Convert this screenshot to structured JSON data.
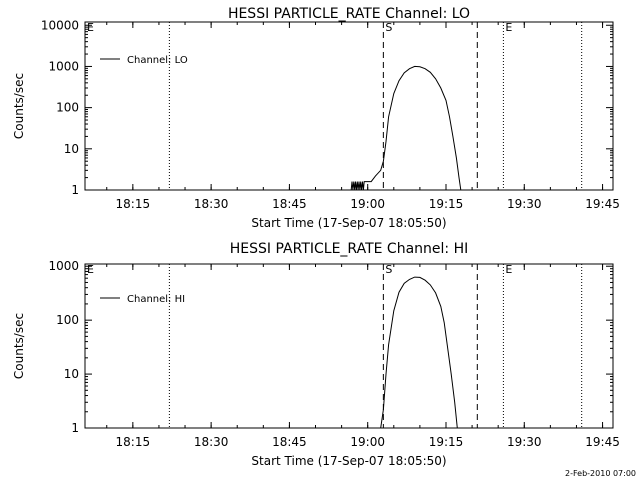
{
  "footer": {
    "timestamp": "2-Feb-2010 07:00"
  },
  "chart_data": [
    {
      "type": "line",
      "title": "HESSI PARTICLE_RATE Channel: LO",
      "xlabel": "Start Time (17-Sep-07 18:05:50)",
      "ylabel": "Counts/sec",
      "y_scale": "log",
      "xlim": [
        "18:05:50",
        "19:47:00"
      ],
      "ylim": [
        1,
        12000
      ],
      "x_ticks": [
        "18:15",
        "18:30",
        "18:45",
        "19:00",
        "19:15",
        "19:30",
        "19:45"
      ],
      "y_ticks": [
        "1",
        "10",
        "100",
        "1000",
        "10000"
      ],
      "legend": {
        "position": "top-left",
        "entries": [
          "Channel: LO"
        ]
      },
      "markers": [
        {
          "label": "E",
          "time": "18:05:50",
          "style": "dotted"
        },
        {
          "time": "18:22:00",
          "style": "dotted"
        },
        {
          "label": "S",
          "time": "19:03:00",
          "style": "dashed"
        },
        {
          "time": "19:21:00",
          "style": "dashed"
        },
        {
          "label": "E",
          "time": "19:26:00",
          "style": "dotted"
        },
        {
          "time": "19:41:00",
          "style": "dotted"
        }
      ],
      "series": [
        {
          "name": "Channel: LO",
          "points": [
            [
              "18:56:50",
              1
            ],
            [
              "18:57:00",
              1.6
            ],
            [
              "18:57:10",
              1
            ],
            [
              "18:57:20",
              1.6
            ],
            [
              "18:57:30",
              1
            ],
            [
              "18:57:40",
              1.6
            ],
            [
              "18:57:50",
              1
            ],
            [
              "18:58:00",
              1.6
            ],
            [
              "18:58:10",
              1
            ],
            [
              "18:58:20",
              1.6
            ],
            [
              "18:58:30",
              1
            ],
            [
              "18:58:40",
              1.6
            ],
            [
              "18:58:50",
              1
            ],
            [
              "18:59:00",
              1.6
            ],
            [
              "18:59:10",
              1
            ],
            [
              "18:59:20",
              1.6
            ],
            [
              "19:00:40",
              1.6
            ],
            [
              "19:01:30",
              2.2
            ],
            [
              "19:02:30",
              3
            ],
            [
              "19:03:00",
              5
            ],
            [
              "19:03:30",
              15
            ],
            [
              "19:04:00",
              60
            ],
            [
              "19:05:00",
              220
            ],
            [
              "19:06:00",
              450
            ],
            [
              "19:07:00",
              700
            ],
            [
              "19:08:00",
              880
            ],
            [
              "19:09:00",
              1000
            ],
            [
              "19:10:00",
              980
            ],
            [
              "19:11:00",
              880
            ],
            [
              "19:12:00",
              720
            ],
            [
              "19:13:00",
              500
            ],
            [
              "19:14:00",
              300
            ],
            [
              "19:15:00",
              150
            ],
            [
              "19:15:40",
              60
            ],
            [
              "19:16:20",
              20
            ],
            [
              "19:17:00",
              6
            ],
            [
              "19:17:30",
              2
            ],
            [
              "19:17:50",
              1
            ]
          ]
        }
      ]
    },
    {
      "type": "line",
      "title": "HESSI PARTICLE_RATE Channel: HI",
      "xlabel": "Start Time (17-Sep-07 18:05:50)",
      "ylabel": "Counts/sec",
      "y_scale": "log",
      "xlim": [
        "18:05:50",
        "19:47:00"
      ],
      "ylim": [
        1,
        1100
      ],
      "x_ticks": [
        "18:15",
        "18:30",
        "18:45",
        "19:00",
        "19:15",
        "19:30",
        "19:45"
      ],
      "y_ticks": [
        "1",
        "10",
        "100",
        "1000"
      ],
      "legend": {
        "position": "top-left",
        "entries": [
          "Channel: HI"
        ]
      },
      "markers": [
        {
          "label": "E",
          "time": "18:05:50",
          "style": "dotted"
        },
        {
          "time": "18:22:00",
          "style": "dotted"
        },
        {
          "label": "S",
          "time": "19:03:00",
          "style": "dashed"
        },
        {
          "time": "19:21:00",
          "style": "dashed"
        },
        {
          "label": "E",
          "time": "19:26:00",
          "style": "dotted"
        },
        {
          "time": "19:41:00",
          "style": "dotted"
        }
      ],
      "series": [
        {
          "name": "Channel: HI",
          "points": [
            [
              "19:02:30",
              1
            ],
            [
              "19:03:00",
              2.2
            ],
            [
              "19:03:30",
              10
            ],
            [
              "19:04:00",
              35
            ],
            [
              "19:05:00",
              150
            ],
            [
              "19:06:00",
              330
            ],
            [
              "19:07:00",
              480
            ],
            [
              "19:08:00",
              570
            ],
            [
              "19:09:00",
              630
            ],
            [
              "19:10:00",
              620
            ],
            [
              "19:11:00",
              550
            ],
            [
              "19:12:00",
              450
            ],
            [
              "19:13:00",
              320
            ],
            [
              "19:14:00",
              180
            ],
            [
              "19:14:40",
              90
            ],
            [
              "19:15:20",
              30
            ],
            [
              "19:16:00",
              10
            ],
            [
              "19:16:40",
              3
            ],
            [
              "19:17:10",
              1
            ]
          ]
        }
      ]
    }
  ]
}
